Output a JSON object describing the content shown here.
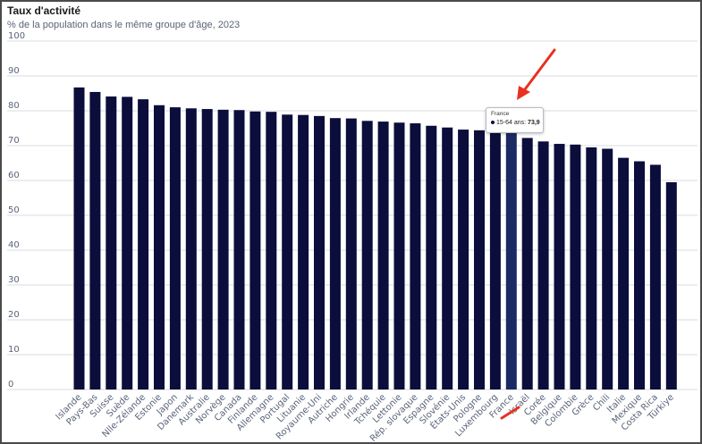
{
  "chart_data": {
    "type": "bar",
    "title": "Taux d'activité",
    "subtitle": "% de la population dans le même groupe d'âge, 2023",
    "xlabel": "",
    "ylabel": "",
    "ylim": [
      0,
      100
    ],
    "yticks": [
      0,
      10,
      20,
      30,
      40,
      50,
      60,
      70,
      80,
      90,
      100
    ],
    "grid": true,
    "bar_color": "#0b0d3a",
    "highlight_color": "#1c2a63",
    "categories": [
      "Islande",
      "Pays-Bas",
      "Suisse",
      "Suède",
      "Nlle-Zélande",
      "Estonie",
      "Japon",
      "Danemark",
      "Australie",
      "Norvège",
      "Canada",
      "Finlande",
      "Allemagne",
      "Portugal",
      "Lituanie",
      "Royaume-Uni",
      "Autriche",
      "Hongrie",
      "Irlande",
      "Tchéquie",
      "Lettonie",
      "Rép. slovaque",
      "Espagne",
      "Slovénie",
      "États-Unis",
      "Pologne",
      "Luxembourg",
      "France",
      "Israël",
      "Corée",
      "Belgique",
      "Colombie",
      "Grèce",
      "Chili",
      "Italie",
      "Mexique",
      "Costa Rica",
      "Türkiye"
    ],
    "series": [
      {
        "values": [
          86.7,
          85.4,
          84.1,
          84.0,
          83.3,
          81.6,
          81.0,
          80.7,
          80.5,
          80.3,
          80.2,
          79.8,
          79.7,
          78.9,
          78.8,
          78.5,
          77.9,
          77.8,
          77.1,
          76.9,
          76.6,
          76.4,
          75.7,
          75.2,
          74.6,
          74.4,
          74.1,
          73.9,
          72.2,
          71.2,
          70.5,
          70.3,
          69.5,
          69.1,
          66.5,
          65.5,
          64.5,
          59.5
        ]
      }
    ],
    "highlight_index": 27,
    "tooltip": {
      "country": "France",
      "series_label": "15-64 ans:",
      "value": "73,9"
    }
  }
}
